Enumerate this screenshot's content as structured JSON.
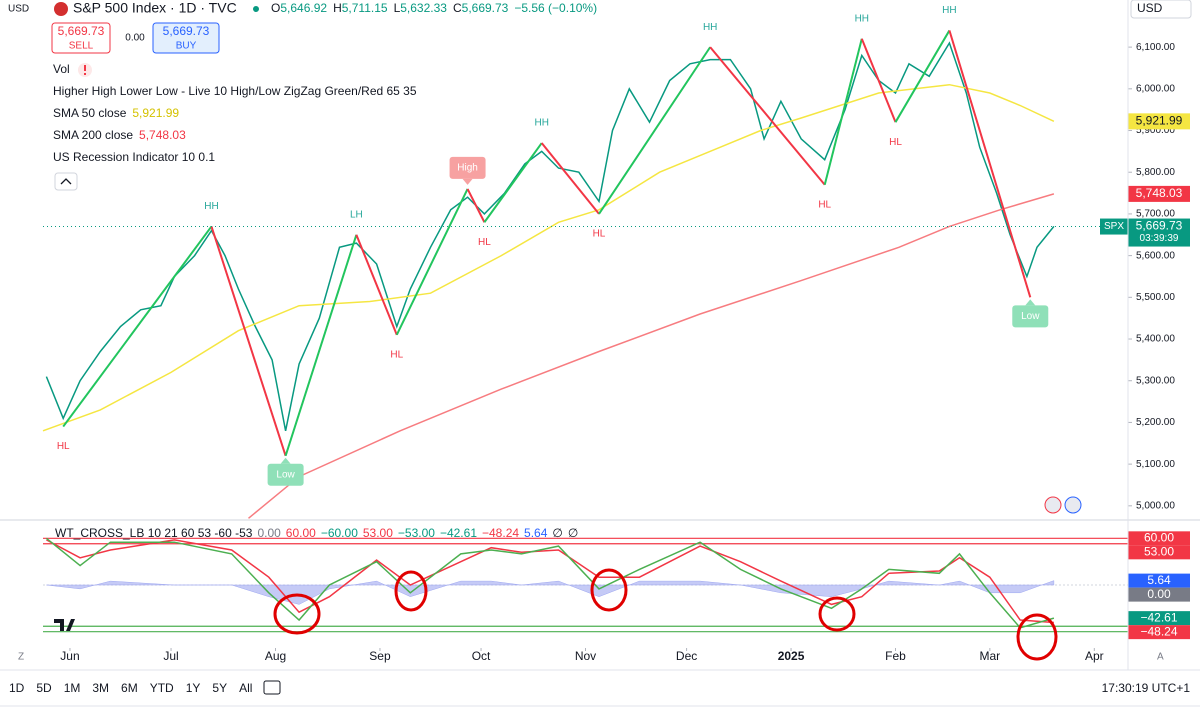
{
  "header": {
    "symbol_currency": "USD",
    "title": "S&P 500 Index · 1D · TVC",
    "ohlc": [
      {
        "key": "O",
        "value": "5,646.92"
      },
      {
        "key": "H",
        "value": "5,711.15"
      },
      {
        "key": "L",
        "value": "5,632.33"
      },
      {
        "key": "C",
        "value": "5,669.73"
      }
    ],
    "change": "−5.56 (−0.10%)",
    "currency": "USD"
  },
  "trade": {
    "sell_price": "5,669.73",
    "sell": "SELL",
    "spread": "0.00",
    "buy_price": "5,669.73",
    "buy": "BUY"
  },
  "indicators": [
    {
      "name": "Vol"
    },
    {
      "name": "Higher High Lower Low - Live 10 High/Low ZigZag Green/Red 65 35"
    },
    {
      "name": "SMA 50 close",
      "value": "5,921.99",
      "color": "#d4c200"
    },
    {
      "name": "SMA 200 close",
      "value": "5,748.03",
      "color": "#f23645"
    },
    {
      "name": "US Recession Indicator 10 0.1"
    }
  ],
  "chart_data": [
    {
      "type": "line",
      "xlim": [
        -8,
        314
      ],
      "ylim": [
        4966,
        6213
      ],
      "yticks": [
        {
          "value": 5000,
          "label": "5,000.00"
        },
        {
          "value": 5100,
          "label": "5,100.00"
        },
        {
          "value": 5200,
          "label": "5,200.00"
        },
        {
          "value": 5300,
          "label": "5,300.00"
        },
        {
          "value": 5400,
          "label": "5,400.00"
        },
        {
          "value": 5500,
          "label": "5,500.00"
        },
        {
          "value": 5600,
          "label": "5,600.00"
        },
        {
          "value": 5700,
          "label": "5,700.00"
        },
        {
          "value": 5800,
          "label": "5,800.00"
        },
        {
          "value": 5900,
          "label": "5,900.00"
        },
        {
          "value": 6000,
          "label": "6,000.00"
        },
        {
          "value": 6100,
          "label": "6,100.00"
        }
      ],
      "grid": false,
      "series": [
        {
          "color": "#089981",
          "x": [
            -7,
            -2,
            3,
            9,
            15,
            21,
            27,
            31,
            37,
            42,
            46,
            50,
            55,
            60,
            64,
            68,
            74,
            80,
            85,
            91,
            97,
            101,
            107,
            113,
            118,
            123,
            129,
            135,
            140,
            145,
            151,
            157,
            161,
            166,
            172,
            178,
            184,
            190,
            196,
            202,
            206,
            211,
            217,
            224,
            230,
            235,
            240,
            245,
            249,
            255,
            261,
            266,
            270,
            275,
            279,
            284,
            287,
            289,
            292
          ],
          "values": [
            5310,
            5210,
            5300,
            5370,
            5430,
            5470,
            5480,
            5550,
            5600,
            5660,
            5600,
            5520,
            5430,
            5350,
            5180,
            5340,
            5450,
            5620,
            5630,
            5580,
            5430,
            5520,
            5620,
            5710,
            5740,
            5700,
            5750,
            5820,
            5850,
            5810,
            5800,
            5730,
            5900,
            6000,
            5920,
            6020,
            6060,
            6070,
            6070,
            6000,
            5880,
            5970,
            5880,
            5830,
            5950,
            6080,
            6020,
            5990,
            6060,
            6030,
            6110,
            5990,
            5860,
            5750,
            5650,
            5550,
            5620,
            5640,
            5670
          ]
        },
        {
          "color": "#f5e642",
          "x": [
            -8,
            9,
            30,
            50,
            68,
            89,
            107,
            128,
            145,
            157,
            175,
            193,
            205,
            217,
            240,
            261,
            273,
            282,
            292
          ],
          "values": [
            5180,
            5230,
            5320,
            5420,
            5480,
            5490,
            5510,
            5600,
            5680,
            5710,
            5800,
            5860,
            5900,
            5930,
            5990,
            6010,
            5990,
            5960,
            5922
          ]
        },
        {
          "color": "#f77c80",
          "x": [
            53,
            68,
            98,
            128,
            157,
            187,
            217,
            246,
            261,
            276,
            292
          ],
          "values": [
            4970,
            5070,
            5180,
            5280,
            5370,
            5460,
            5540,
            5620,
            5670,
            5710,
            5748
          ]
        }
      ],
      "zigzag": {
        "up_color": "#22c55e",
        "down_color": "#f23645",
        "x": [
          -2,
          42,
          64,
          85,
          97,
          118,
          123,
          140,
          157,
          190,
          224,
          235,
          245,
          261,
          285
        ],
        "values": [
          5190,
          5670,
          5120,
          5650,
          5410,
          5760,
          5680,
          5870,
          5700,
          6100,
          5770,
          6120,
          5920,
          6140,
          5500
        ],
        "labels": [
          "HL",
          "HH",
          "Low",
          "LH",
          "HL",
          "High",
          "HL",
          "HH",
          "HL",
          "HH",
          "HL",
          "HH",
          "HL",
          "HH",
          "Low"
        ]
      },
      "tags": [
        {
          "value": 5921.99,
          "label": "5,921.99",
          "color": "#f5e642",
          "text_color": "#131722"
        },
        {
          "value": 5748.03,
          "label": "5,748.03",
          "color": "#f23645",
          "text_color": "#ffffff"
        },
        {
          "value": 5669.73,
          "label": "5,669.73",
          "color": "#089981",
          "text_color": "#ffffff",
          "symbol": "SPX",
          "countdown": "03:39:39"
        }
      ]
    },
    {
      "type": "line",
      "title": [
        {
          "text": "WT_CROSS_LB 10 21 60 53 -60 -53",
          "color": "#131722"
        },
        {
          "text": "0.00",
          "color": "#787b86"
        },
        {
          "text": "60.00",
          "color": "#f23645"
        },
        {
          "text": "−60.00",
          "color": "#089981"
        },
        {
          "text": "53.00",
          "color": "#f23645"
        },
        {
          "text": "−53.00",
          "color": "#089981"
        },
        {
          "text": "−42.61",
          "color": "#089981"
        },
        {
          "text": "−48.24",
          "color": "#f23645"
        },
        {
          "text": "5.64",
          "color": "#2962ff"
        },
        {
          "text": "∅",
          "color": "#131722"
        },
        {
          "text": "∅",
          "color": "#131722"
        }
      ],
      "xlim": [
        -8,
        314
      ],
      "ylim": [
        -81,
        81
      ],
      "xticks": [
        {
          "value": 0,
          "label": "Jun"
        },
        {
          "value": 30,
          "label": "Jul"
        },
        {
          "value": 61,
          "label": "Aug"
        },
        {
          "value": 92,
          "label": "Sep"
        },
        {
          "value": 122,
          "label": "Oct"
        },
        {
          "value": 153,
          "label": "Nov"
        },
        {
          "value": 183,
          "label": "Dec"
        },
        {
          "value": 214,
          "label": "2025"
        },
        {
          "value": 245,
          "label": "Feb"
        },
        {
          "value": 273,
          "label": "Mar"
        },
        {
          "value": 304,
          "label": "Apr"
        }
      ],
      "levels": [
        {
          "value": 60,
          "color": "#f23645"
        },
        {
          "value": 53,
          "color": "#f23645"
        },
        {
          "value": -53,
          "color": "#4caf50"
        },
        {
          "value": -60,
          "color": "#4caf50"
        }
      ],
      "series": [
        {
          "style": "area",
          "color": "#9ea7f0",
          "x": [
            -7,
            3,
            12,
            31,
            48,
            59,
            68,
            77,
            91,
            101,
            116,
            125,
            134,
            145,
            157,
            169,
            187,
            199,
            211,
            226,
            235,
            243,
            258,
            264,
            273,
            282,
            292
          ],
          "values": [
            0,
            -5,
            5,
            0,
            0,
            -15,
            -25,
            -5,
            5,
            -15,
            5,
            5,
            0,
            5,
            -15,
            5,
            5,
            0,
            -10,
            -15,
            -5,
            5,
            0,
            5,
            -10,
            -10,
            5.64
          ]
        },
        {
          "style": "line",
          "color": "#f23645",
          "x": [
            -7,
            3,
            12,
            31,
            48,
            59,
            68,
            77,
            91,
            101,
            116,
            125,
            134,
            145,
            157,
            169,
            187,
            199,
            211,
            226,
            235,
            243,
            258,
            264,
            273,
            282,
            292
          ],
          "values": [
            58,
            35,
            45,
            58,
            45,
            10,
            -35,
            -15,
            32,
            0,
            30,
            48,
            42,
            45,
            10,
            10,
            50,
            30,
            5,
            -25,
            -15,
            15,
            18,
            35,
            10,
            -45,
            -48.24
          ]
        },
        {
          "style": "line",
          "color": "#4caf50",
          "x": [
            -7,
            3,
            12,
            31,
            48,
            59,
            68,
            77,
            91,
            101,
            116,
            125,
            134,
            145,
            157,
            169,
            187,
            199,
            211,
            226,
            235,
            243,
            258,
            264,
            273,
            282,
            292
          ],
          "values": [
            60,
            25,
            55,
            55,
            40,
            -10,
            -45,
            0,
            30,
            -10,
            40,
            45,
            40,
            50,
            -5,
            20,
            55,
            20,
            -5,
            -30,
            -5,
            20,
            15,
            40,
            -10,
            -55,
            -42.61
          ]
        }
      ],
      "tags": [
        {
          "value": 60,
          "label": "60.00",
          "color": "#f23645"
        },
        {
          "value": 53,
          "label": "53.00",
          "color": "#f23645"
        },
        {
          "value": 5.64,
          "label": "5.64",
          "color": "#2962ff"
        },
        {
          "value": 0,
          "label": "0.00",
          "color": "#787b86"
        },
        {
          "value": -42.61,
          "label": "−42.61",
          "color": "#089981"
        },
        {
          "value": -48.24,
          "label": "−48.24",
          "color": "#f23645"
        }
      ]
    }
  ],
  "corners": {
    "left": "Z",
    "right": "A"
  },
  "toolbar": {
    "ranges": [
      "1D",
      "5D",
      "1M",
      "3M",
      "6M",
      "YTD",
      "1Y",
      "5Y",
      "All"
    ],
    "time": "17:30:19 UTC+1"
  }
}
